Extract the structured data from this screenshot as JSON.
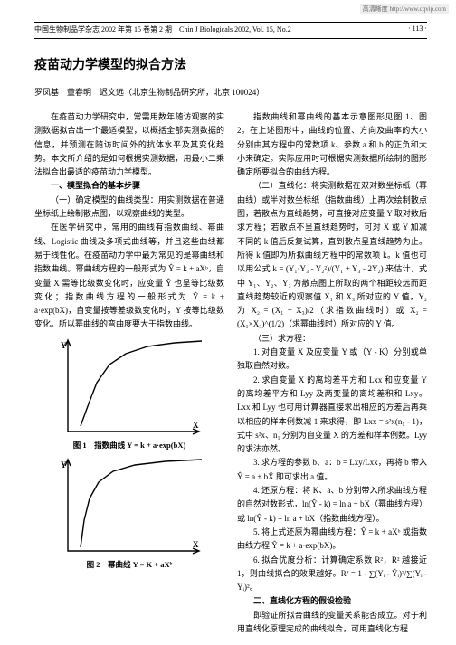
{
  "watermark": "高清晰度 http://www.cqvip.com",
  "header": {
    "left": "中国生物制品学杂志 2002 年第 15 卷第 2 期　Chin J Biologicals 2002, Vol. 15, No.2",
    "right": "· 113 ·"
  },
  "title": "疫苗动力学模型的拟合方法",
  "authors": "罗凤基　董春明　迟文远（北京生物制品研究所，北京 100024）",
  "left_col": {
    "intro": "在疫苗动力学研究中，常需用数年随访观察的实测数据拟合出一个最适模型，以概括全部实测数据的信息，并预测在随访时间外的抗体水平及其变化趋势。本文所介绍的是如何根据实测数据，用最小二乘法拟合出最适的疫苗动力学模型。",
    "sec1_head": "一、模型拟合的基本步骤",
    "p1": "（一）确定模型的曲线类型：用实测数据在普通坐标纸上绘制散点图，以观察曲线的类型。",
    "p2": "在医学研究中，常用的曲线有指数曲线、幂曲线、Logistic 曲线及多项式曲线等，并且这些曲线都易于线性化。在疫苗动力学中最为常见的是幂曲线和指数曲线。幂曲线方程的一般形式为 Ŷ = k + aXᵇ，自变量 X 需等比级数变化时，应变量 Ŷ 也呈等比级数变化；指数曲线方程的一般形式为 Ŷ = k + a·exp(bX)，自变量按等差级数变化时，Y 按等比级数变化。所以幂曲线的弯曲度要大于指数曲线。",
    "fig1_caption": "图 1　指数曲线 Y = k + a·exp(bX)",
    "fig2_caption": "图 2　幂曲线 Y = K + aXᵇ",
    "fig": {
      "axis_color": "#000000",
      "curve_color": "#000000",
      "line_width": 1.4,
      "x_label": "X",
      "y_label": "Y",
      "fig1_points": [
        [
          14,
          6
        ],
        [
          22,
          28
        ],
        [
          32,
          54
        ],
        [
          46,
          74
        ],
        [
          64,
          86
        ],
        [
          88,
          94
        ],
        [
          118,
          98
        ],
        [
          148,
          100
        ]
      ],
      "fig2_points": [
        [
          14,
          4
        ],
        [
          18,
          34
        ],
        [
          24,
          58
        ],
        [
          34,
          76
        ],
        [
          50,
          88
        ],
        [
          74,
          95
        ],
        [
          108,
          99
        ],
        [
          148,
          101
        ]
      ]
    }
  },
  "right_col": {
    "p1": "指数曲线和幂曲线的基本示意图形见图 1、图 2。在上述图形中，曲线的位置、方向及曲率的大小分别由其方程中的常数项 k、参数 a 和 b 的正负和大小来确定。实际应用时可根据实测数据所绘制的图形确定所要拟合的曲线方程。",
    "p2": "（二）直线化：将实测数据在双对数坐标纸（幂曲线）或半对数坐标纸（指数曲线）上再次绘制散点图，若散点为直线趋势，可直接对应变量 Y 取对数后求方程；若散点不呈直线趋势时，可对 X 或 Y 加减不同的 k 值后反复试算，直到散点呈直线趋势为止。所得 k 值即为所拟曲线方程中的常数项 k。k 值也可以用公式 k = (Y₁·Y₃ - Y₂²)/(Y₁ + Y₃ - 2Y₂) 来估计，式中 Y₁、Y₂、Y₃ 为散点图上所取的两个相距较远而距直线趋势较近的观察值 X₁ 和 X₃ 所对应的 Y 值，Y₂ 为 X₂ = (X₁ + X₃)/2（求指数曲线时）或 X₂ = (X₁×X₃)^(1/2)（求幂曲线时）所对应的 Y 值。",
    "p3_head": "（三）求方程：",
    "p3a": "1. 对自变量 X 及应变量 Y 或（Y - K）分别或单独取自然对数。",
    "p3b": "2. 求自变量 X 的离均差平方和 Lxx 和应变量 Y 的离均差平方和 Lyy 及两变量的离均差积和 Lxy。Lxx 和 Lyy 也可用计算器直接求出相应的方差后再乘以相应的样本例数减 1 来求得，即 Lxx = s²x(n₁ - 1)，式中 s²x、n₁ 分别为自变量 X 的方差和样本例数。Lyy 的求法亦然。",
    "p3c": "3. 求方程的参数 b、a：b = Lxy/Lxx，再将 b 带入 Ŷ = a + bX̄ 即可求出 a 值。",
    "p3d": "4. 还原方程：将 K、a、b 分别带入所求曲线方程的自然对数形式，ln(Ŷ - k) = ln a + bX（幂曲线方程）或 ln(Ŷ - k) = ln a + bX（指数曲线方程）。",
    "p3e": "5. 将上式还原为幂曲线方程：Ŷ = k + aXᵇ 或指数曲线方程 Ŷ = k + a·exp(bX)。",
    "p3f": "6. 拟合优度分析：计算确定系数 R²，R² 越接近 1，则曲线拟合的效果越好。R² = 1 - ∑(Yᵢ - Ŷᵢ)²/∑(Yᵢ - Ȳᵢ)²。",
    "sec2_head": "二、直线化方程的假设检验",
    "p4": "即验证所拟合曲线的变量关系能否成立。对于利用直线化原理完成的曲线拟合，可用直线化方程"
  }
}
